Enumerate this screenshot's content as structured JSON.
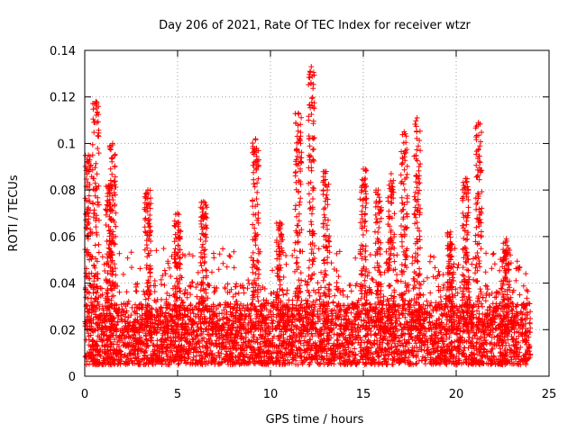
{
  "chart_data": {
    "type": "scatter",
    "title": "Day 206 of 2021, Rate Of TEC Index for receiver wtzr",
    "xlabel": "GPS time / hours",
    "ylabel": "ROTI / TECUs",
    "xlim": [
      0,
      25
    ],
    "ylim": [
      0,
      0.14
    ],
    "x_ticks": [
      0,
      5,
      10,
      15,
      20,
      25
    ],
    "y_ticks": [
      0,
      0.02,
      0.04,
      0.06,
      0.08,
      0.1,
      0.12,
      0.14
    ],
    "x_tick_labels": [
      "0",
      "5",
      "10",
      "15",
      "20",
      "25"
    ],
    "y_tick_labels": [
      "0",
      "0.02",
      "0.04",
      "0.06",
      "0.08",
      "0.1",
      "0.12",
      "0.14"
    ],
    "grid": true,
    "marker": "+",
    "color": "#ff0000",
    "series": [
      {
        "name": "ROTI",
        "description": "dense point cloud; baseline ~0.005-0.03 TECU/min over 0-24 h",
        "time_range_hours": [
          0,
          24
        ],
        "baseline_range": [
          0.005,
          0.03
        ],
        "peaks": [
          {
            "x": 0.2,
            "y": 0.095
          },
          {
            "x": 0.6,
            "y": 0.118
          },
          {
            "x": 1.3,
            "y": 0.082
          },
          {
            "x": 1.5,
            "y": 0.1
          },
          {
            "x": 3.4,
            "y": 0.08
          },
          {
            "x": 5.0,
            "y": 0.07
          },
          {
            "x": 6.4,
            "y": 0.075
          },
          {
            "x": 9.2,
            "y": 0.102
          },
          {
            "x": 10.5,
            "y": 0.066
          },
          {
            "x": 11.5,
            "y": 0.113
          },
          {
            "x": 12.2,
            "y": 0.133
          },
          {
            "x": 13.0,
            "y": 0.088
          },
          {
            "x": 15.0,
            "y": 0.089
          },
          {
            "x": 15.8,
            "y": 0.08
          },
          {
            "x": 16.5,
            "y": 0.087
          },
          {
            "x": 17.2,
            "y": 0.105
          },
          {
            "x": 17.9,
            "y": 0.111
          },
          {
            "x": 19.7,
            "y": 0.062
          },
          {
            "x": 20.5,
            "y": 0.085
          },
          {
            "x": 21.2,
            "y": 0.109
          },
          {
            "x": 22.7,
            "y": 0.059
          }
        ]
      }
    ]
  }
}
